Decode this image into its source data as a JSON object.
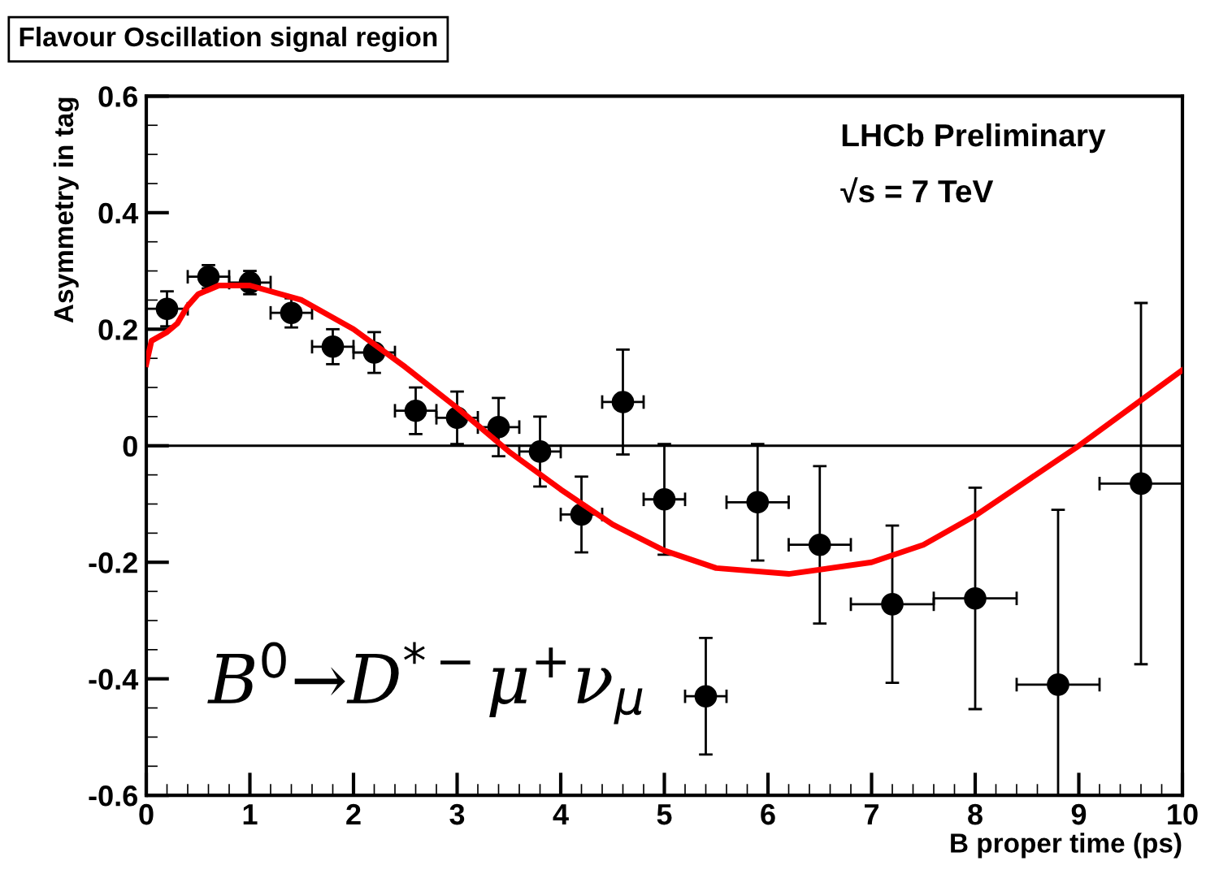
{
  "chart_data": {
    "type": "scatter",
    "title": "Flavour Oscillation signal region",
    "xlabel": "B proper time (ps)",
    "ylabel": "Asymmetry in tag",
    "annotations": [
      "LHCb Preliminary",
      "√s = 7 TeV",
      "B$^{0}$→D$^{*−}$μ$^{+}$ν$_{μ}$"
    ],
    "series": [
      {
        "color": "#000000",
        "marker": "circle",
        "x": [
          0.2,
          0.6,
          1.0,
          1.4,
          1.8,
          2.2,
          2.6,
          3.0,
          3.4,
          3.8,
          4.2,
          4.6,
          5.0,
          5.4,
          5.9,
          6.5,
          7.2,
          8.0,
          8.8,
          9.6
        ],
        "values": [
          0.235,
          0.29,
          0.28,
          0.228,
          0.17,
          0.16,
          0.06,
          0.048,
          0.032,
          -0.01,
          -0.118,
          0.075,
          -0.092,
          -0.43,
          -0.097,
          -0.17,
          -0.272,
          -0.262,
          -0.41,
          -0.065
        ],
        "errors": [
          0.03,
          0.02,
          0.02,
          0.025,
          0.03,
          0.035,
          0.04,
          0.045,
          0.05,
          0.06,
          0.065,
          0.09,
          0.095,
          0.1,
          0.1,
          0.135,
          0.135,
          0.19,
          [
            -0.6,
            -0.11
          ],
          0.31
        ],
        "xerrors": [
          0.2,
          0.2,
          0.2,
          0.2,
          0.2,
          0.2,
          0.2,
          0.2,
          0.2,
          0.2,
          0.2,
          0.2,
          0.2,
          0.2,
          0.3,
          0.3,
          0.4,
          0.4,
          0.4,
          0.4
        ]
      },
      {
        "type": "line",
        "color": "#ff0000",
        "line_style": "solid",
        "x": [
          0,
          0.05,
          0.2,
          0.3,
          0.4,
          0.5,
          0.7,
          1.0,
          1.5,
          2.0,
          2.5,
          3.0,
          3.5,
          4.0,
          4.5,
          5.0,
          5.5,
          6.2,
          7.0,
          7.5,
          8.0,
          8.5,
          9.0,
          9.5,
          10
        ],
        "values": [
          0.14,
          0.18,
          0.195,
          0.21,
          0.24,
          0.26,
          0.275,
          0.275,
          0.25,
          0.2,
          0.135,
          0.065,
          -0.01,
          -0.075,
          -0.135,
          -0.18,
          -0.21,
          -0.22,
          -0.2,
          -0.17,
          -0.12,
          -0.06,
          0.0,
          0.065,
          0.13
        ]
      }
    ],
    "ref_lines": [
      {
        "axis": "y",
        "value": 0,
        "color": "#000000"
      }
    ],
    "xlim": [
      0,
      10
    ],
    "ylim": [
      -0.6,
      0.6
    ],
    "xticks": [
      0,
      1,
      2,
      3,
      4,
      5,
      6,
      7,
      8,
      9,
      10
    ],
    "yticks": [
      -0.6,
      -0.4,
      -0.2,
      0,
      0.2,
      0.4,
      0.6
    ],
    "grid": false,
    "legend": false
  }
}
